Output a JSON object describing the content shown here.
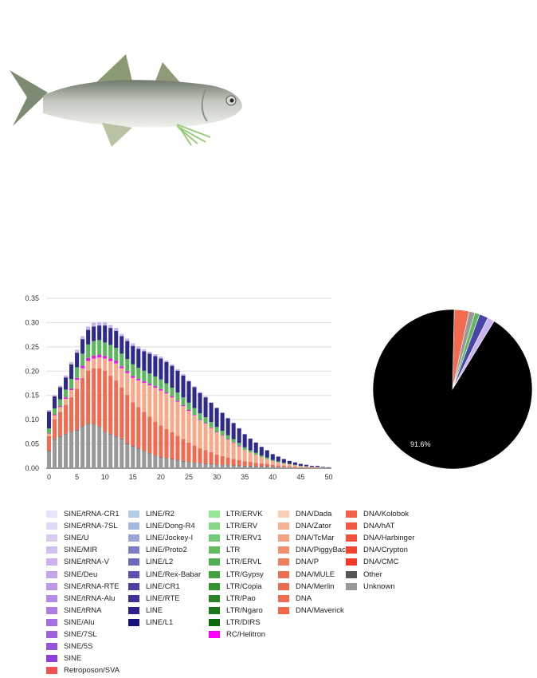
{
  "chart_data": [
    {
      "type": "bar",
      "stacked": true,
      "x": [
        0,
        1,
        2,
        3,
        4,
        5,
        6,
        7,
        8,
        9,
        10,
        11,
        12,
        13,
        14,
        15,
        16,
        17,
        18,
        19,
        20,
        21,
        22,
        23,
        24,
        25,
        26,
        27,
        28,
        29,
        30,
        31,
        32,
        33,
        34,
        35,
        36,
        37,
        38,
        39,
        40,
        41,
        42,
        43,
        44,
        45,
        46,
        47,
        48,
        49,
        50
      ],
      "xticks": [
        0,
        5,
        10,
        15,
        20,
        25,
        30,
        35,
        40,
        45,
        50
      ],
      "yticks": [
        "0.00",
        "0.05",
        "0.10",
        "0.15",
        "0.20",
        "0.25",
        "0.30",
        "0.35"
      ],
      "ylim": [
        0,
        0.35
      ],
      "xlim": [
        -0.5,
        50.5
      ],
      "grid": true,
      "series": [
        {
          "name": "Unknown",
          "color": "#999999",
          "values": [
            0.035,
            0.06,
            0.065,
            0.07,
            0.075,
            0.078,
            0.085,
            0.09,
            0.09,
            0.085,
            0.075,
            0.07,
            0.065,
            0.06,
            0.05,
            0.045,
            0.04,
            0.035,
            0.03,
            0.025,
            0.022,
            0.02,
            0.018,
            0.016,
            0.014,
            0.012,
            0.011,
            0.01,
            0.009,
            0.008,
            0.007,
            0.006,
            0.006,
            0.005,
            0.005,
            0.004,
            0.004,
            0.003,
            0.003,
            0.003,
            0.002,
            0.002,
            0.002,
            0.002,
            0.001,
            0.001,
            0.001,
            0.001,
            0.001,
            0.001,
            0.001
          ]
        },
        {
          "name": "Other",
          "color": "#555555",
          "values": [
            0.001,
            0.001,
            0.001,
            0.001,
            0.001,
            0.001,
            0.001,
            0.001,
            0.001,
            0.001,
            0.001,
            0.001,
            0.001,
            0.001,
            0.001,
            0.001,
            0.001,
            0.001,
            0.001,
            0.001,
            0.001,
            0.001,
            0.001,
            0.001,
            0.001,
            0.001,
            0.001,
            0.001,
            0.001,
            0.001,
            0.001,
            0.001,
            0.001,
            0.001,
            0.001,
            0.001,
            0.001,
            0.001,
            0.001,
            0.001,
            0.001,
            0.001,
            0,
            0,
            0,
            0,
            0,
            0,
            0,
            0,
            0
          ]
        },
        {
          "name": "DNA",
          "color": "#f26a4f",
          "values": [
            0.03,
            0.04,
            0.05,
            0.06,
            0.07,
            0.085,
            0.1,
            0.11,
            0.115,
            0.12,
            0.125,
            0.12,
            0.115,
            0.105,
            0.1,
            0.09,
            0.085,
            0.08,
            0.075,
            0.07,
            0.065,
            0.06,
            0.055,
            0.05,
            0.045,
            0.04,
            0.035,
            0.03,
            0.027,
            0.024,
            0.02,
            0.018,
            0.015,
            0.013,
            0.011,
            0.009,
            0.008,
            0.007,
            0.006,
            0.005,
            0.004,
            0.003,
            0.003,
            0.002,
            0.002,
            0.001,
            0.001,
            0.001,
            0.001,
            0,
            0
          ]
        },
        {
          "name": "DNA/Zator",
          "color": "#f8a98a",
          "values": [
            0.005,
            0.008,
            0.01,
            0.012,
            0.015,
            0.018,
            0.02,
            0.02,
            0.02,
            0.022,
            0.025,
            0.03,
            0.035,
            0.04,
            0.045,
            0.05,
            0.055,
            0.06,
            0.065,
            0.07,
            0.072,
            0.073,
            0.072,
            0.07,
            0.068,
            0.065,
            0.062,
            0.058,
            0.055,
            0.05,
            0.046,
            0.042,
            0.037,
            0.033,
            0.028,
            0.024,
            0.02,
            0.017,
            0.013,
            0.01,
            0.008,
            0.006,
            0.005,
            0.004,
            0.003,
            0.002,
            0.002,
            0.001,
            0.001,
            0.001,
            0
          ]
        },
        {
          "name": "RC/Helitron",
          "color": "#ee11ee",
          "values": [
            0.001,
            0.002,
            0.002,
            0.003,
            0.003,
            0.004,
            0.005,
            0.006,
            0.006,
            0.006,
            0.005,
            0.005,
            0.005,
            0.004,
            0.004,
            0.004,
            0.003,
            0.003,
            0.003,
            0.003,
            0.003,
            0.002,
            0.002,
            0.002,
            0.002,
            0.002,
            0.001,
            0.001,
            0.001,
            0.001,
            0.001,
            0.001,
            0.001,
            0.001,
            0.001,
            0,
            0,
            0,
            0,
            0,
            0,
            0,
            0,
            0,
            0,
            0,
            0,
            0,
            0,
            0,
            0
          ]
        },
        {
          "name": "LTR",
          "color": "#5cb85c",
          "values": [
            0.01,
            0.012,
            0.014,
            0.016,
            0.02,
            0.022,
            0.025,
            0.028,
            0.03,
            0.03,
            0.028,
            0.028,
            0.027,
            0.026,
            0.025,
            0.024,
            0.023,
            0.022,
            0.021,
            0.02,
            0.02,
            0.019,
            0.018,
            0.017,
            0.016,
            0.015,
            0.014,
            0.013,
            0.012,
            0.011,
            0.01,
            0.009,
            0.008,
            0.007,
            0.006,
            0.005,
            0.004,
            0.004,
            0.003,
            0.003,
            0.002,
            0.002,
            0.001,
            0.001,
            0.001,
            0.001,
            0,
            0,
            0,
            0,
            0
          ]
        },
        {
          "name": "LINE",
          "color": "#2e2a8c",
          "values": [
            0.035,
            0.025,
            0.025,
            0.025,
            0.03,
            0.03,
            0.03,
            0.03,
            0.03,
            0.03,
            0.035,
            0.035,
            0.035,
            0.036,
            0.037,
            0.038,
            0.039,
            0.04,
            0.041,
            0.042,
            0.043,
            0.044,
            0.045,
            0.045,
            0.045,
            0.044,
            0.043,
            0.042,
            0.041,
            0.04,
            0.039,
            0.037,
            0.035,
            0.033,
            0.03,
            0.027,
            0.024,
            0.021,
            0.018,
            0.015,
            0.012,
            0.01,
            0.008,
            0.006,
            0.005,
            0.004,
            0.003,
            0.002,
            0.002,
            0.001,
            0.001
          ]
        },
        {
          "name": "SINE",
          "color": "#c8b4ee",
          "values": [
            0.003,
            0.003,
            0.003,
            0.004,
            0.005,
            0.006,
            0.006,
            0.007,
            0.008,
            0.007,
            0.007,
            0.006,
            0.006,
            0.005,
            0.005,
            0.005,
            0.005,
            0.004,
            0.004,
            0.004,
            0.004,
            0.003,
            0.003,
            0.003,
            0.003,
            0.002,
            0.002,
            0.002,
            0.002,
            0.001,
            0.001,
            0.001,
            0.001,
            0.001,
            0.001,
            0.001,
            0.001,
            0,
            0,
            0,
            0,
            0,
            0,
            0,
            0,
            0,
            0,
            0,
            0,
            0,
            0
          ]
        }
      ]
    },
    {
      "type": "pie",
      "slices": [
        {
          "name": "Unknown",
          "value": 91.6,
          "color": "#000000",
          "label": "91.6%"
        },
        {
          "name": "DNA",
          "value": 3.0,
          "color": "#f26a4f",
          "label": ""
        },
        {
          "name": "Other",
          "value": 1.2,
          "color": "#999999",
          "label": ""
        },
        {
          "name": "LTR",
          "value": 1.0,
          "color": "#5cb85c",
          "label": ""
        },
        {
          "name": "LINE",
          "value": 1.8,
          "color": "#4a44a8",
          "label": ""
        },
        {
          "name": "SINE",
          "value": 1.4,
          "color": "#c8b4ee",
          "label": ""
        }
      ]
    }
  ],
  "legend": [
    {
      "label": "SINE/tRNA-CR1",
      "color": "#e8e4f8"
    },
    {
      "label": "SINE/tRNA-7SL",
      "color": "#e0d8f6"
    },
    {
      "label": "SINE/U",
      "color": "#d9ccf3"
    },
    {
      "label": "SINE/MIR",
      "color": "#d2bff1"
    },
    {
      "label": "SINE/tRNA-V",
      "color": "#cbb2ee"
    },
    {
      "label": "SINE/Deu",
      "color": "#c4a5ec"
    },
    {
      "label": "SINE/tRNA-RTE",
      "color": "#bd98e9"
    },
    {
      "label": "SINE/tRNA-Alu",
      "color": "#b68be7"
    },
    {
      "label": "SINE/tRNA",
      "color": "#ae7ee4"
    },
    {
      "label": "SINE/Alu",
      "color": "#a670e2"
    },
    {
      "label": "SINE/7SL",
      "color": "#9e62df"
    },
    {
      "label": "SINE/5S",
      "color": "#9654dc"
    },
    {
      "label": "SINE",
      "color": "#8e40da"
    },
    {
      "label": "Retroposon/SVA",
      "color": "#f05252"
    },
    {
      "label": "LINE/R2",
      "color": "#b2cbe6"
    },
    {
      "label": "LINE/Dong-R4",
      "color": "#a6b8e0"
    },
    {
      "label": "LINE/Jockey-I",
      "color": "#9aa5da"
    },
    {
      "label": "LINE/Proto2",
      "color": "#7b7dc8"
    },
    {
      "label": "LINE/L2",
      "color": "#6c67be"
    },
    {
      "label": "LINE/Rex-Babar",
      "color": "#5e52b4"
    },
    {
      "label": "LINE/CR1",
      "color": "#4f40a8"
    },
    {
      "label": "LINE/RTE",
      "color": "#3f2f9c"
    },
    {
      "label": "LINE",
      "color": "#2a1f8c"
    },
    {
      "label": "LINE/L1",
      "color": "#150f80"
    },
    {
      "label": "LTR/ERVK",
      "color": "#98e698"
    },
    {
      "label": "LTR/ERV",
      "color": "#86d886"
    },
    {
      "label": "LTR/ERV1",
      "color": "#74ca74"
    },
    {
      "label": "LTR",
      "color": "#62bc62"
    },
    {
      "label": "LTR/ERVL",
      "color": "#52ae52"
    },
    {
      "label": "LTR/Gypsy",
      "color": "#43a043"
    },
    {
      "label": "LTR/Copia",
      "color": "#359235"
    },
    {
      "label": "LTR/Pao",
      "color": "#288428"
    },
    {
      "label": "LTR/Ngaro",
      "color": "#1b761b"
    },
    {
      "label": "LTR/DIRS",
      "color": "#0e680e"
    },
    {
      "label": "RC/Helitron",
      "color": "#ff00ff"
    },
    {
      "label": "DNA/Dada",
      "color": "#fbcfb6"
    },
    {
      "label": "DNA/Zator",
      "color": "#f8b296"
    },
    {
      "label": "DNA/TcMar",
      "color": "#f5a080"
    },
    {
      "label": "DNA/PiggyBac",
      "color": "#f28e6c"
    },
    {
      "label": "DNA/P",
      "color": "#f07d5c"
    },
    {
      "label": "DNA/MULE",
      "color": "#ee6e50"
    },
    {
      "label": "DNA/Merlin",
      "color": "#ec6a50"
    },
    {
      "label": "DNA",
      "color": "#f26a4f"
    },
    {
      "label": "DNA/Maverick",
      "color": "#f2664a"
    },
    {
      "label": "DNA/Kolobok",
      "color": "#f26045"
    },
    {
      "label": "DNA/hAT",
      "color": "#f25840"
    },
    {
      "label": "DNA/Harbinger",
      "color": "#f2503a"
    },
    {
      "label": "DNA/Crypton",
      "color": "#f24430"
    },
    {
      "label": "DNA/CMC",
      "color": "#f23a26"
    },
    {
      "label": "Other",
      "color": "#555555"
    },
    {
      "label": "Unknown",
      "color": "#999999"
    }
  ],
  "legend_columns": [
    14,
    10,
    11,
    9,
    7
  ]
}
